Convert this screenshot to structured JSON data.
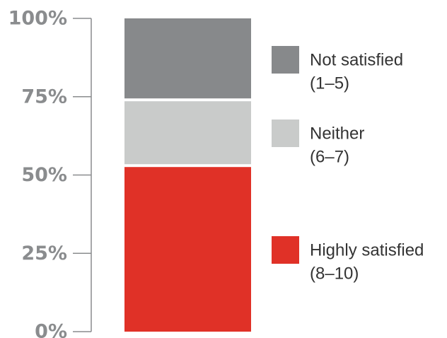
{
  "chart_data": {
    "type": "bar",
    "stacked": true,
    "percent": true,
    "categories": [
      ""
    ],
    "ylim": [
      0,
      100
    ],
    "yticks": [
      {
        "value": 0,
        "label": "0%"
      },
      {
        "value": 25,
        "label": "25%"
      },
      {
        "value": 50,
        "label": "50%"
      },
      {
        "value": 75,
        "label": "75%"
      },
      {
        "value": 100,
        "label": "100%"
      }
    ],
    "series": [
      {
        "key": "highly-satisfied",
        "name_line1": "Highly satisfied",
        "name_line2": "(8–10)",
        "value": 53,
        "color": "#e03127"
      },
      {
        "key": "neither",
        "name_line1": "Neither",
        "name_line2": "(6–7)",
        "value": 21,
        "color": "#c9cbca"
      },
      {
        "key": "not-satisfied",
        "name_line1": "Not satisfied",
        "name_line2": "(1–5)",
        "value": 26,
        "color": "#87898b"
      }
    ],
    "legend_position": "right",
    "grid": false
  }
}
